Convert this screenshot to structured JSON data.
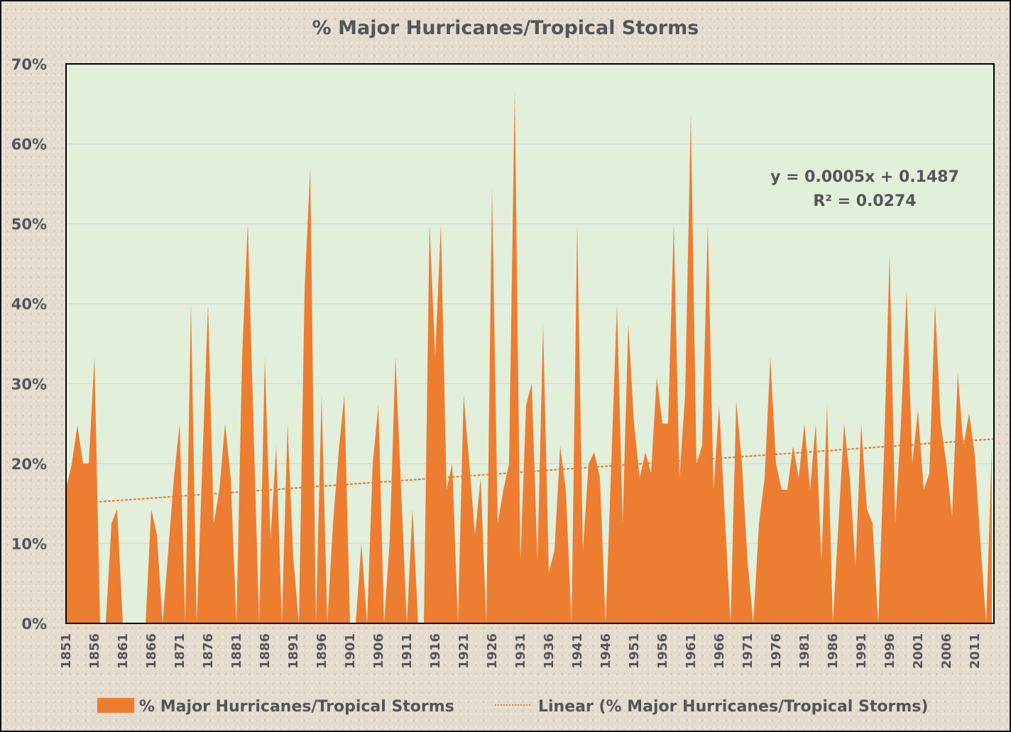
{
  "chart_data": {
    "type": "area",
    "title": "% Major Hurricanes/Tropical Storms",
    "xlabel": "",
    "ylabel": "",
    "ylim": [
      0,
      0.7
    ],
    "y_ticks": [
      "0%",
      "10%",
      "20%",
      "30%",
      "40%",
      "50%",
      "60%",
      "70%"
    ],
    "y_tick_values": [
      0,
      0.1,
      0.2,
      0.3,
      0.4,
      0.5,
      0.6,
      0.7
    ],
    "x_start_year": 1851,
    "x_end_year": 2014,
    "x_tick_labels": [
      "1851",
      "1856",
      "1861",
      "1866",
      "1871",
      "1876",
      "1881",
      "1886",
      "1891",
      "1896",
      "1901",
      "1906",
      "1911",
      "1916",
      "1921",
      "1926",
      "1931",
      "1936",
      "1941",
      "1946",
      "1951",
      "1956",
      "1961",
      "1966",
      "1971",
      "1976",
      "1981",
      "1986",
      "1991",
      "1996",
      "2001",
      "2006",
      "2011"
    ],
    "grid": true,
    "legend_position": "bottom",
    "colors": {
      "area": "#ed7d31",
      "plot_bg": "#e2efda",
      "grid": "#d9d9d9",
      "text": "#555555"
    },
    "series": [
      {
        "name": "% Major Hurricanes/Tropical Storms",
        "values": [
          0.169,
          0.199,
          0.248,
          0.2,
          0.2,
          0.333,
          0,
          0,
          0.125,
          0.143,
          0,
          0,
          0,
          0,
          0,
          0.143,
          0.111,
          0,
          0.091,
          0.182,
          0.25,
          0,
          0.4,
          0,
          0.2,
          0.4,
          0.125,
          0.167,
          0.25,
          0.182,
          0,
          0.333,
          0.5,
          0.25,
          0,
          0.333,
          0.105,
          0.222,
          0,
          0.25,
          0.083,
          0,
          0.417,
          0.571,
          0,
          0.286,
          0,
          0.125,
          0.214,
          0.286,
          0,
          0,
          0.1,
          0,
          0.2,
          0.273,
          0,
          0.105,
          0.333,
          0.167,
          0,
          0.143,
          0,
          0,
          0.5,
          0.333,
          0.5,
          0.167,
          0.2,
          0,
          0.286,
          0.2,
          0.111,
          0.182,
          0,
          0.545,
          0.125,
          0.167,
          0.2,
          0.667,
          0.077,
          0.273,
          0.3,
          0.077,
          0.375,
          0.063,
          0.091,
          0.222,
          0.167,
          0,
          0.5,
          0.091,
          0.2,
          0.214,
          0.182,
          0,
          0.2,
          0.4,
          0.125,
          0.375,
          0.25,
          0.182,
          0.214,
          0.188,
          0.308,
          0.25,
          0.25,
          0.5,
          0.182,
          0.286,
          0.636,
          0.2,
          0.222,
          0.5,
          0.167,
          0.273,
          0.133,
          0,
          0.278,
          0.2,
          0.077,
          0,
          0.125,
          0.182,
          0.333,
          0.2,
          0.167,
          0.167,
          0.222,
          0.182,
          0.25,
          0.167,
          0.25,
          0.077,
          0.273,
          0,
          0.125,
          0.25,
          0.182,
          0.071,
          0.25,
          0.143,
          0.125,
          0,
          0.21,
          0.462,
          0.125,
          0.25,
          0.417,
          0.2,
          0.267,
          0.167,
          0.188,
          0.4,
          0.25,
          0.2,
          0.133,
          0.313,
          0.222,
          0.263,
          0.211,
          0.1,
          0,
          0.222
        ]
      }
    ],
    "trendline": {
      "name": "Linear (% Major Hurricanes/Tropical Storms)",
      "type": "linear",
      "slope": 0.0005,
      "intercept": 0.1487,
      "equation_label": "y = 0.0005x + 0.1487",
      "r2_label": "R² = 0.0274"
    }
  }
}
